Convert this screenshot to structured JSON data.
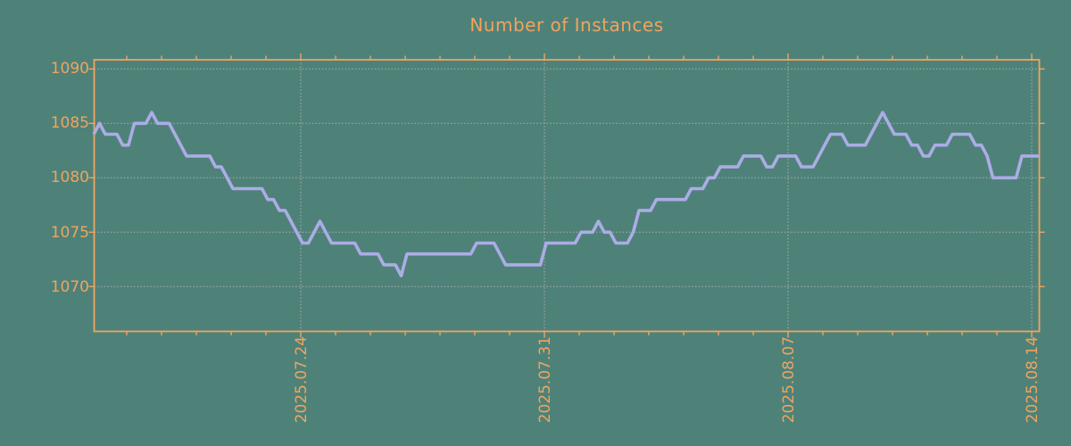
{
  "title": "Number of Instances",
  "colors": {
    "background": "#4e8279",
    "axis_and_labels": "#f0a45f",
    "series_line": "#acace6",
    "gridline": "#b3b3b3"
  },
  "chart_data": {
    "type": "line",
    "title": "Number of Instances",
    "legend": "none",
    "grid": true,
    "y_axis": {
      "tick_labels": [
        "1070",
        "1075",
        "1080",
        "1085",
        "1090"
      ],
      "tick_values": [
        1070,
        1075,
        1080,
        1085,
        1090
      ],
      "min_shown": 1066,
      "max_shown": 1091
    },
    "x_axis": {
      "tick_labels": [
        "2025.07.24",
        "2025.07.31",
        "2025.08.07",
        "2025.08.14"
      ],
      "major_tick_interval": "7 days",
      "minor_tick_interval": "1 day",
      "label_rotation_deg": 90
    },
    "series": [
      {
        "name": "instances",
        "color": "#acace6",
        "samples_per_day": 6,
        "values": [
          1084,
          1085,
          1084,
          1084,
          1084,
          1083,
          1083,
          1085,
          1085,
          1085,
          1086,
          1085,
          1085,
          1085,
          1084,
          1083,
          1082,
          1082,
          1082,
          1082,
          1082,
          1081,
          1081,
          1080,
          1079,
          1079,
          1079,
          1079,
          1079,
          1079,
          1078,
          1078,
          1077,
          1077,
          1076,
          1075,
          1074,
          1074,
          1075,
          1076,
          1075,
          1074,
          1074,
          1074,
          1074,
          1074,
          1073,
          1073,
          1073,
          1073,
          1072,
          1072,
          1072,
          1071,
          1073,
          1073,
          1073,
          1073,
          1073,
          1073,
          1073,
          1073,
          1073,
          1073,
          1073,
          1073,
          1074,
          1074,
          1074,
          1074,
          1073,
          1072,
          1072,
          1072,
          1072,
          1072,
          1072,
          1072,
          1074,
          1074,
          1074,
          1074,
          1074,
          1074,
          1075,
          1075,
          1075,
          1076,
          1075,
          1075,
          1074,
          1074,
          1074,
          1075,
          1077,
          1077,
          1077,
          1078,
          1078,
          1078,
          1078,
          1078,
          1078,
          1079,
          1079,
          1079,
          1080,
          1080,
          1081,
          1081,
          1081,
          1081,
          1082,
          1082,
          1082,
          1082,
          1081,
          1081,
          1082,
          1082,
          1082,
          1082,
          1081,
          1081,
          1081,
          1082,
          1083,
          1084,
          1084,
          1084,
          1083,
          1083,
          1083,
          1083,
          1084,
          1085,
          1086,
          1085,
          1084,
          1084,
          1084,
          1083,
          1083,
          1082,
          1082,
          1083,
          1083,
          1083,
          1084,
          1084,
          1084,
          1084,
          1083,
          1083,
          1082,
          1080,
          1080,
          1080,
          1080,
          1080,
          1082,
          1082,
          1082,
          1082
        ]
      }
    ]
  }
}
